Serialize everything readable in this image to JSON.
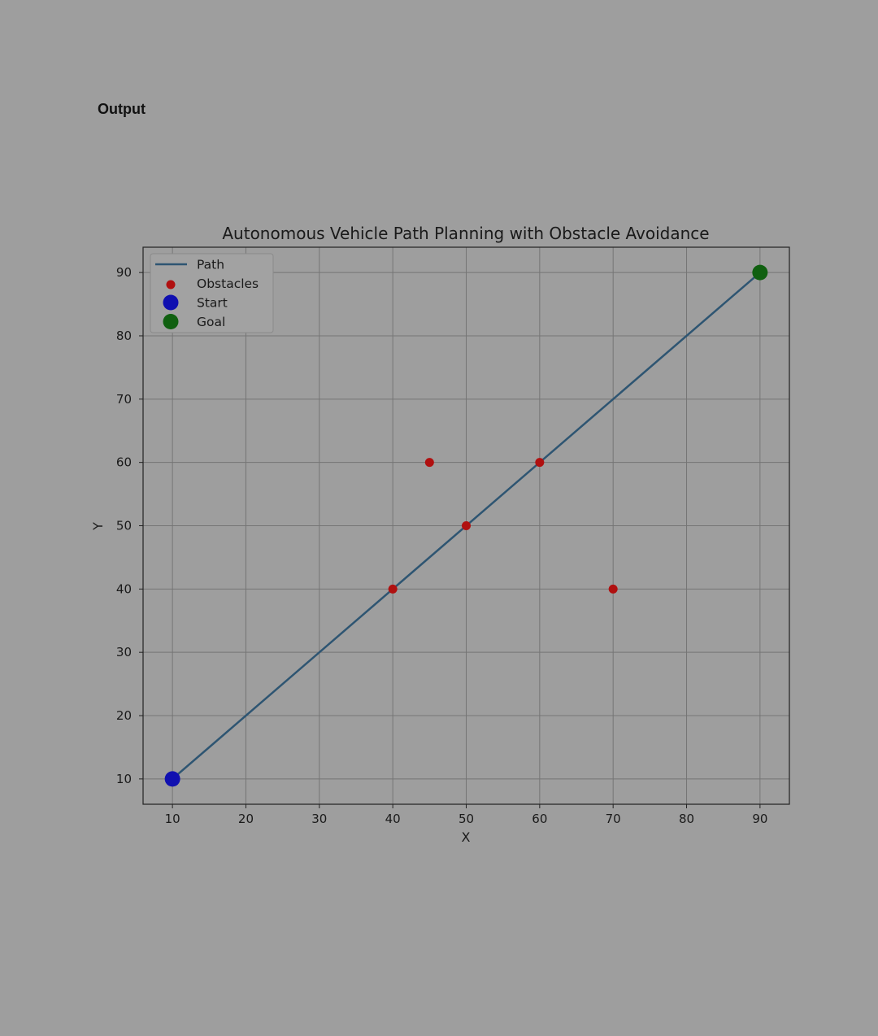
{
  "page": {
    "label": "Output"
  },
  "chart_data": {
    "type": "line",
    "title": "Autonomous Vehicle Path Planning with Obstacle Avoidance",
    "xlabel": "X",
    "ylabel": "Y",
    "xlim": [
      6,
      94
    ],
    "ylim": [
      6,
      94
    ],
    "xticks": [
      10,
      20,
      30,
      40,
      50,
      60,
      70,
      80,
      90
    ],
    "yticks": [
      10,
      20,
      30,
      40,
      50,
      60,
      70,
      80,
      90
    ],
    "grid": true,
    "legend": {
      "placement": "upper-left",
      "entries": [
        {
          "label": "Path",
          "marker": "line"
        },
        {
          "label": "Obstacles",
          "marker": "dot-small"
        },
        {
          "label": "Start",
          "marker": "dot-large"
        },
        {
          "label": "Goal",
          "marker": "dot-large"
        }
      ]
    },
    "series": [
      {
        "name": "Path",
        "kind": "line",
        "color": "#2e5572",
        "points": [
          [
            10,
            10
          ],
          [
            90,
            90
          ]
        ]
      },
      {
        "name": "Obstacles",
        "kind": "scatter",
        "color": "#b01010",
        "points": [
          [
            40,
            40
          ],
          [
            45,
            60
          ],
          [
            50,
            50
          ],
          [
            60,
            60
          ],
          [
            70,
            40
          ]
        ]
      },
      {
        "name": "Start",
        "kind": "scatter",
        "color": "#1010b0",
        "points": [
          [
            10,
            10
          ]
        ]
      },
      {
        "name": "Goal",
        "kind": "scatter",
        "color": "#106010",
        "points": [
          [
            90,
            90
          ]
        ]
      }
    ],
    "colors": {
      "grid": "#757575",
      "axes": "#222222"
    }
  }
}
